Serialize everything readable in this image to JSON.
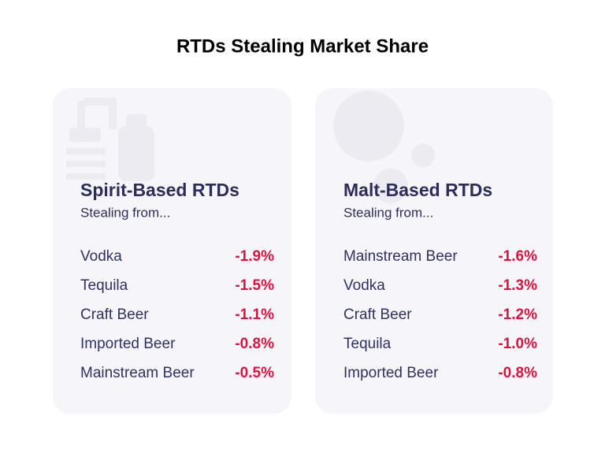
{
  "title": "RTDs Stealing Market Share",
  "cards": [
    {
      "heading": "Spirit-Based RTDs",
      "subheading": "Stealing from...",
      "rows": [
        [
          "Vodka",
          "-1.9%"
        ],
        [
          "Tequila",
          "-1.5%"
        ],
        [
          "Craft Beer",
          "-1.1%"
        ],
        [
          "Imported Beer",
          "-0.8%"
        ],
        [
          "Mainstream Beer",
          "-0.5%"
        ]
      ]
    },
    {
      "heading": "Malt-Based RTDs",
      "subheading": "Stealing from...",
      "rows": [
        [
          "Mainstream Beer",
          "-1.6%"
        ],
        [
          "Vodka",
          "-1.3%"
        ],
        [
          "Craft Beer",
          "-1.2%"
        ],
        [
          "Tequila",
          "-1.0%"
        ],
        [
          "Imported Beer",
          "-0.8%"
        ]
      ]
    }
  ]
}
